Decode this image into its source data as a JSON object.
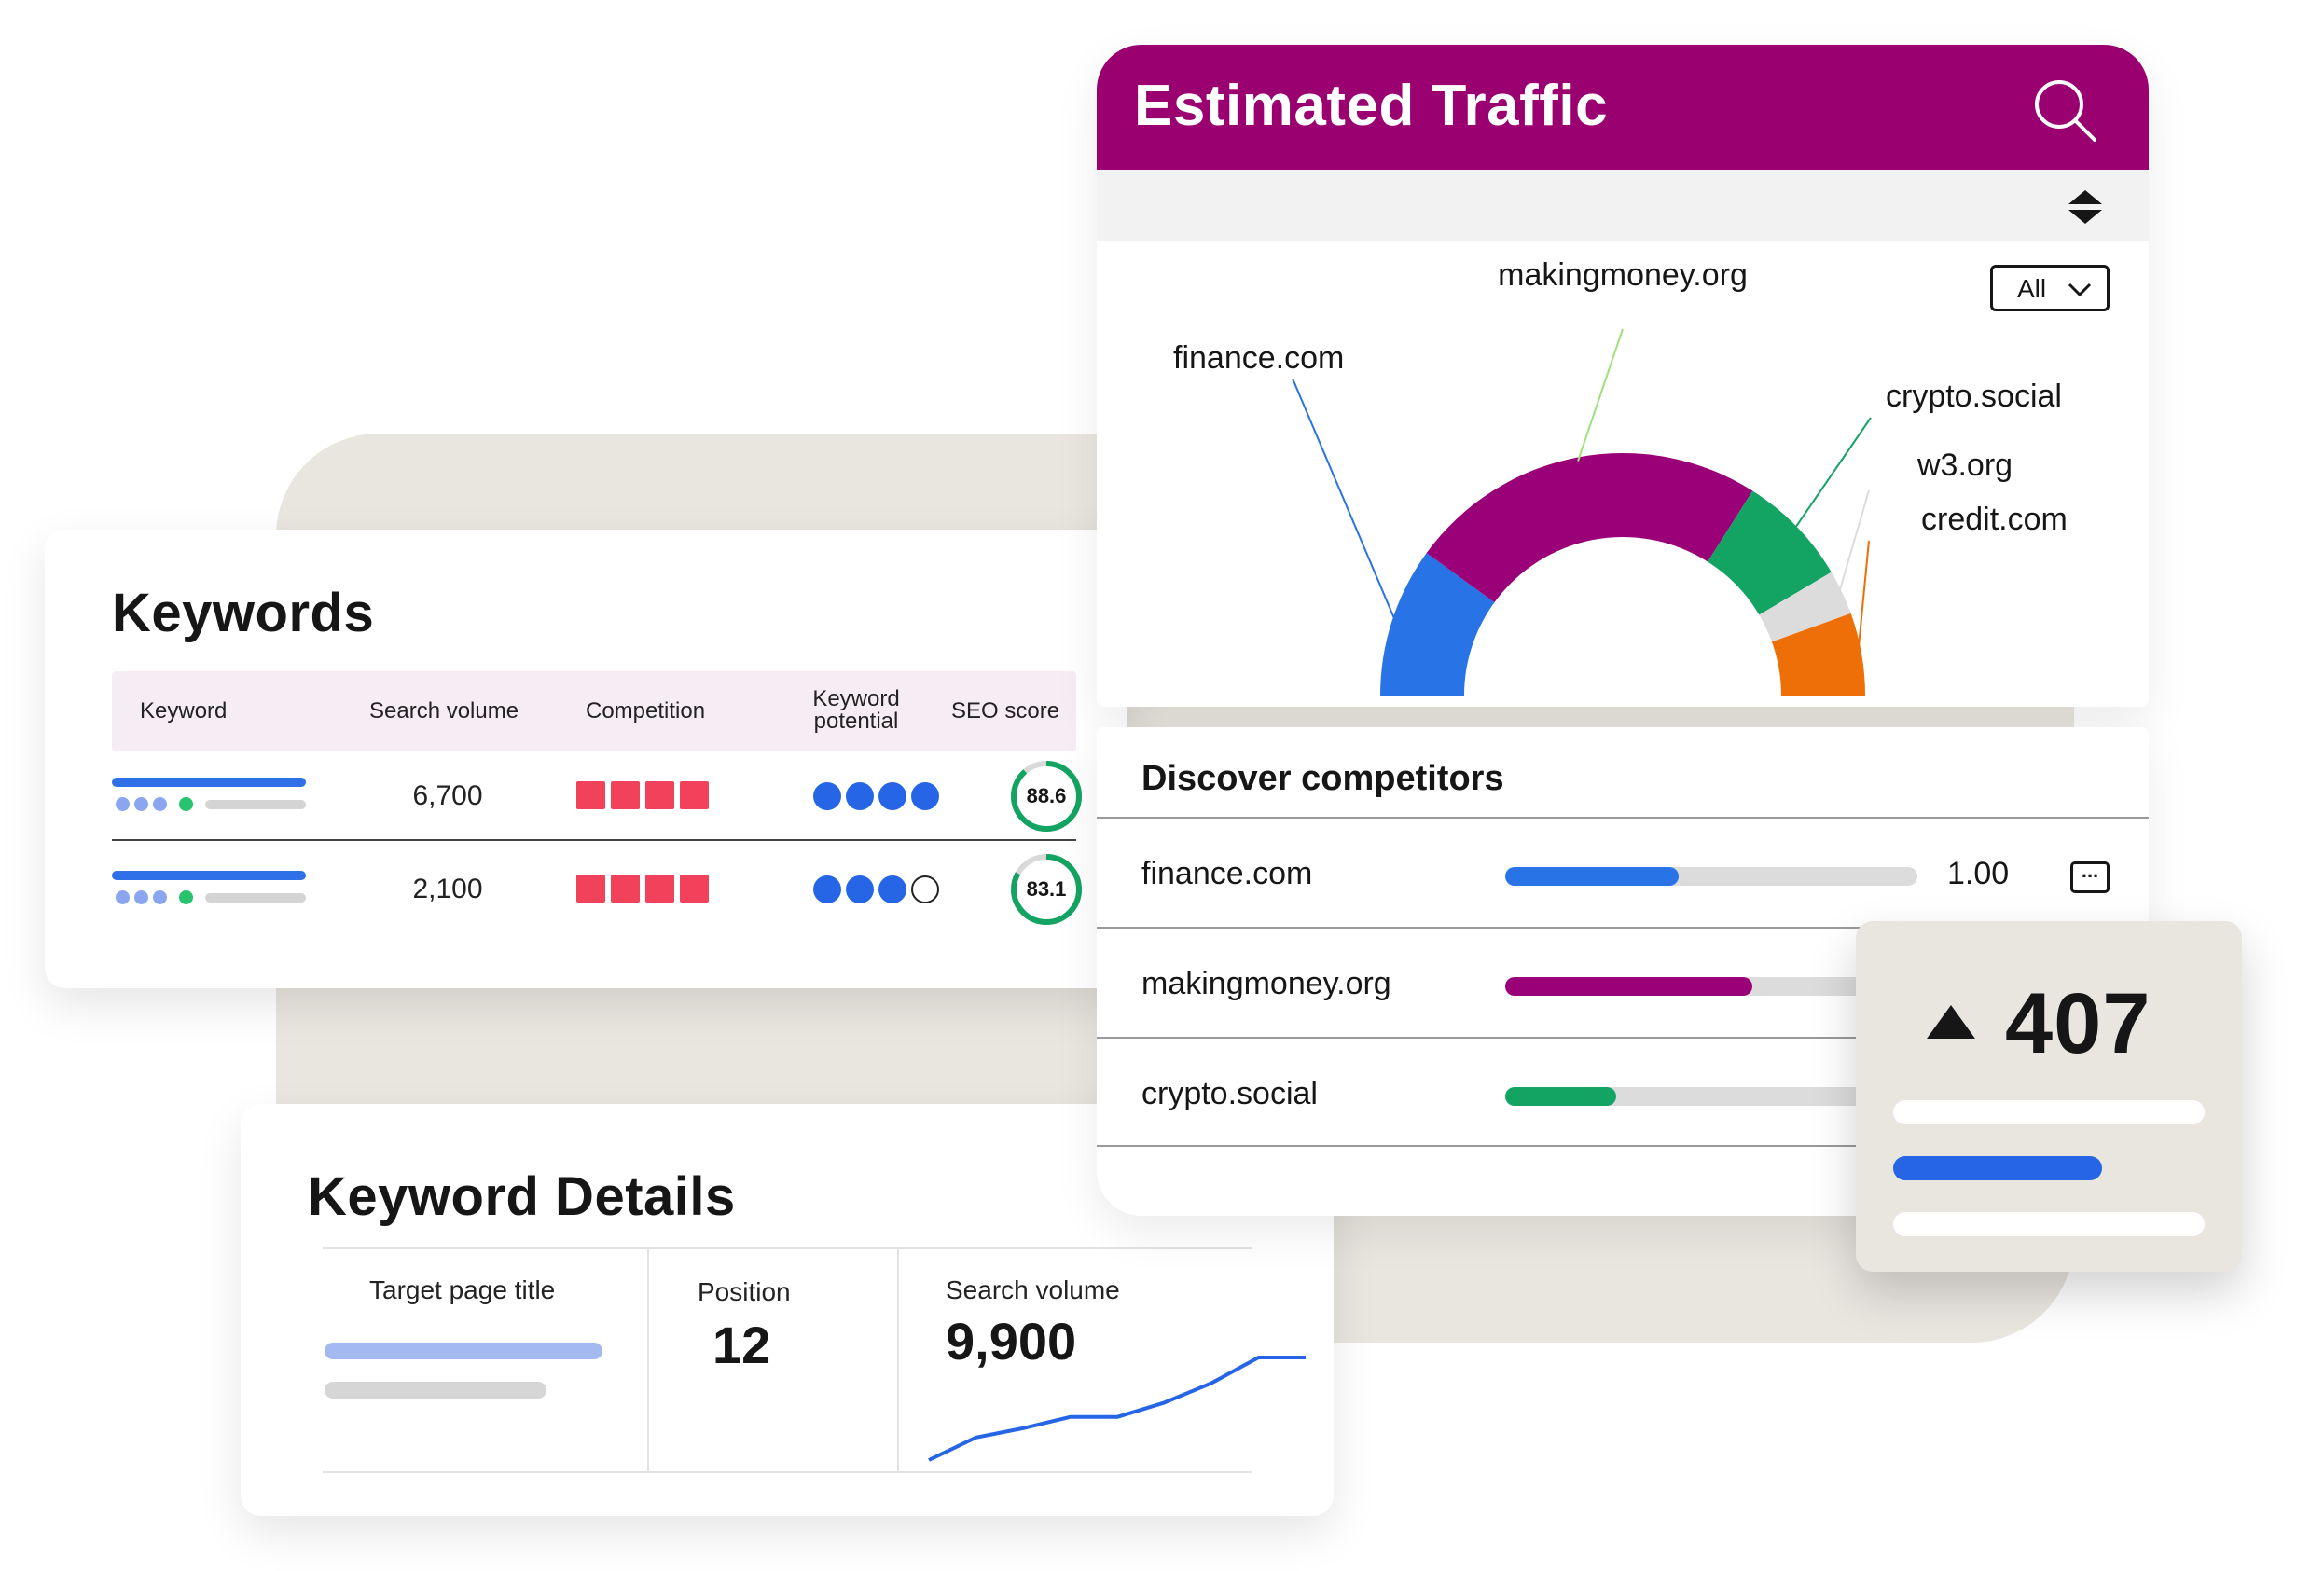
{
  "keywords": {
    "title": "Keywords",
    "columns": [
      "Keyword",
      "Search volume",
      "Competition",
      "Keyword potential",
      "SEO score"
    ],
    "rows": [
      {
        "search_volume": "6,700",
        "competition_level": 4,
        "potential_level": 4,
        "seo_score": "88.6",
        "seo_fraction": 0.886
      },
      {
        "search_volume": "2,100",
        "competition_level": 4,
        "potential_level": 3,
        "seo_score": "83.1",
        "seo_fraction": 0.831
      }
    ]
  },
  "keyword_details": {
    "title": "Keyword Details",
    "target_page_title_label": "Target page title",
    "position_label": "Position",
    "position_value": "12",
    "search_volume_label": "Search volume",
    "search_volume_value": "9,900",
    "trend": [
      0,
      0.22,
      0.31,
      0.42,
      0.42,
      0.56,
      0.75,
      1.0,
      1.0
    ]
  },
  "estimated_traffic": {
    "title": "Estimated Traffic",
    "filter_value": "All",
    "chart_data": {
      "type": "pie",
      "labels": [
        "finance.com",
        "makingmoney.org",
        "crypto.social",
        "w3.org",
        "credit.com"
      ],
      "values": [
        20,
        48,
        15,
        6,
        11
      ],
      "colors": [
        "#2873e6",
        "#9a0077",
        "#13a463",
        "#dcdcdc",
        "#ee6e07"
      ]
    }
  },
  "discover_competitors": {
    "title": "Discover competitors",
    "rows": [
      {
        "name": "finance.com",
        "share": 0.42,
        "color": "#2873e6",
        "value": "1.00"
      },
      {
        "name": "makingmoney.org",
        "share": 0.6,
        "color": "#9a0077"
      },
      {
        "name": "crypto.social",
        "share": 0.27,
        "color": "#13a463"
      }
    ]
  },
  "stat": {
    "value": "407"
  },
  "colors": {
    "brand": "#9a0070",
    "blue": "#2873e6",
    "competition": "#f2415a",
    "score_ring": "#13a463"
  }
}
